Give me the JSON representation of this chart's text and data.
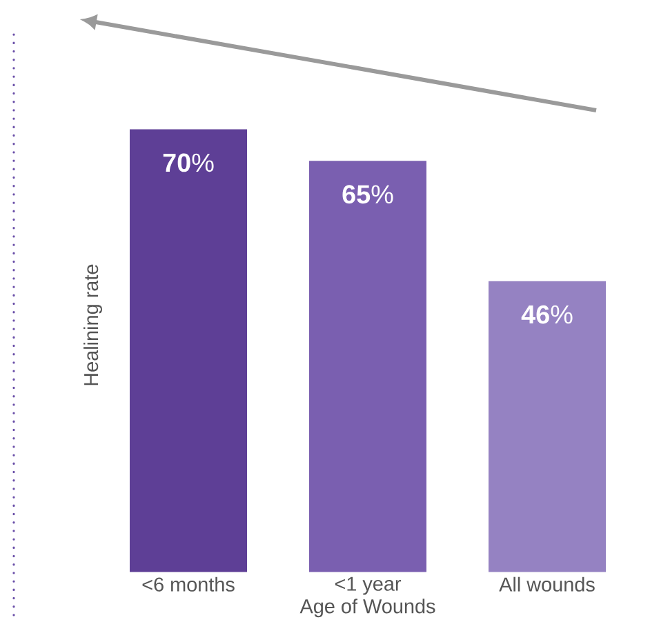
{
  "chart_data": {
    "type": "bar",
    "xlabel": "Age of Wounds",
    "ylabel": "Healining rate",
    "categories": [
      "<6 months",
      "<1 year",
      "All wounds"
    ],
    "values": [
      70,
      65,
      46
    ],
    "colors": [
      "#5e3f96",
      "#7a5fb0",
      "#9582c2"
    ],
    "value_labels": [
      "**70**%",
      "**65**%",
      "**46**%"
    ]
  }
}
